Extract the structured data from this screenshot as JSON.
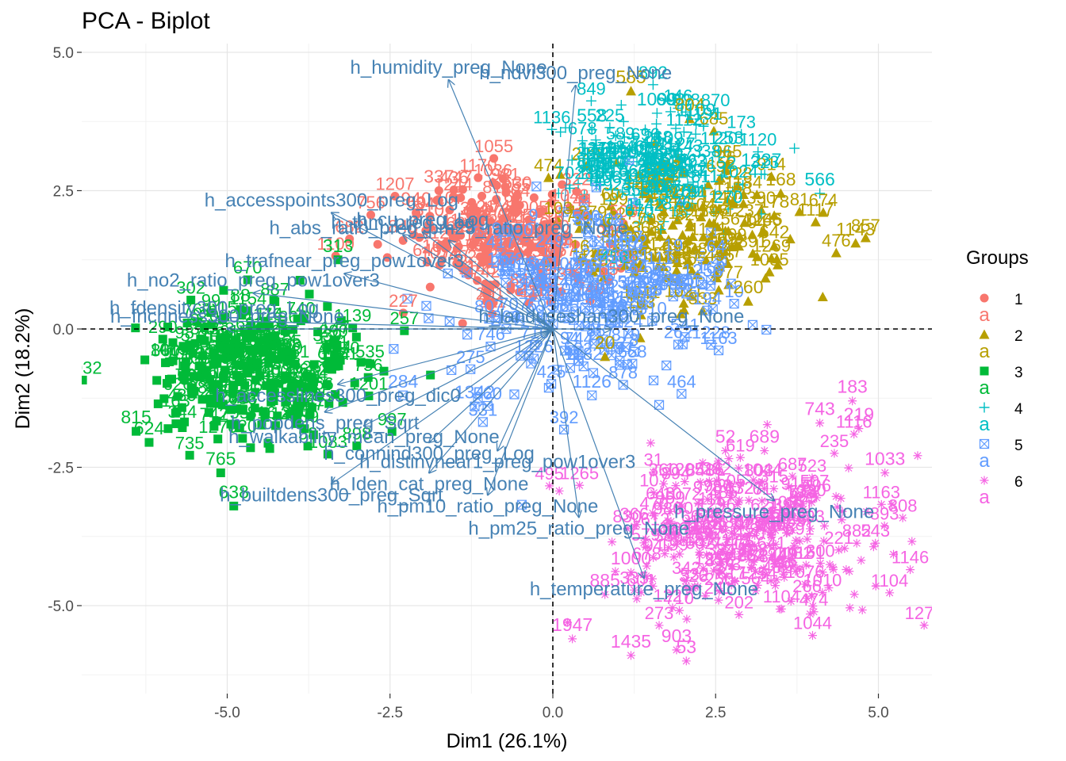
{
  "chart_data": {
    "type": "scatter",
    "title": "PCA - Biplot",
    "xlabel": "Dim1 (26.1%)",
    "ylabel": "Dim2 (18.2%)",
    "xlim": [
      -7.0,
      5.8
    ],
    "ylim": [
      -6.2,
      5.0
    ],
    "x_ticks": [
      -5.0,
      -2.5,
      0.0,
      2.5,
      5.0
    ],
    "x_tick_labels": [
      "-5.0",
      "-2.5",
      "0.0",
      "2.5",
      "5.0"
    ],
    "y_ticks": [
      -5.0,
      -2.5,
      0.0,
      2.5,
      5.0
    ],
    "y_tick_labels": [
      "-5.0",
      "-2.5",
      "0.0",
      "2.5",
      "5.0"
    ],
    "grid": true,
    "reference_lines": [
      {
        "axis": "x",
        "value": 0,
        "style": "dashed"
      },
      {
        "axis": "y",
        "value": 0,
        "style": "dashed"
      }
    ],
    "legend": {
      "title": "Groups",
      "placement": "right",
      "entries": [
        {
          "name": "1",
          "color": "#F8766D",
          "shape": "circle",
          "label_symbol": "a"
        },
        {
          "name": "2",
          "color": "#B79F00",
          "shape": "triangle",
          "label_symbol": "a"
        },
        {
          "name": "3",
          "color": "#00BA38",
          "shape": "square",
          "label_symbol": "a"
        },
        {
          "name": "4",
          "color": "#00BFC4",
          "shape": "plus",
          "label_symbol": "a"
        },
        {
          "name": "5",
          "color": "#619CFF",
          "shape": "boxcross",
          "label_symbol": "a"
        },
        {
          "name": "6",
          "color": "#F564E3",
          "shape": "asterisk",
          "label_symbol": "a"
        }
      ]
    },
    "groups": [
      {
        "name": "1",
        "center": [
          -0.8,
          1.6
        ],
        "spread": [
          0.75,
          0.6
        ],
        "count": 180
      },
      {
        "name": "2",
        "center": [
          2.0,
          1.7
        ],
        "spread": [
          0.9,
          0.75
        ],
        "count": 150
      },
      {
        "name": "3",
        "center": [
          -4.6,
          -0.8
        ],
        "spread": [
          0.85,
          0.65
        ],
        "count": 260
      },
      {
        "name": "4",
        "center": [
          1.5,
          2.8
        ],
        "spread": [
          0.75,
          0.55
        ],
        "count": 160
      },
      {
        "name": "5",
        "center": [
          0.6,
          0.6
        ],
        "spread": [
          1.05,
          0.85
        ],
        "count": 200
      },
      {
        "name": "6",
        "center": [
          3.0,
          -3.8
        ],
        "spread": [
          1.05,
          0.75
        ],
        "count": 260
      }
    ],
    "points": [
      {
        "group": "1",
        "x": -1.75,
        "y": 2.5,
        "label": "337"
      },
      {
        "group": "1",
        "x": -2.1,
        "y": 2.1,
        "label": "940"
      },
      {
        "group": "1",
        "x": -2.3,
        "y": 1.6,
        "label": "848"
      },
      {
        "group": "1",
        "x": -1.9,
        "y": 1.9,
        "label": "310"
      },
      {
        "group": "1",
        "x": -1.7,
        "y": 1.25,
        "label": "1052"
      },
      {
        "group": "2",
        "x": 4.65,
        "y": 1.55,
        "label": "1143"
      },
      {
        "group": "2",
        "x": 3.5,
        "y": 2.45,
        "label": "168"
      },
      {
        "group": "2",
        "x": 3.4,
        "y": 2.05,
        "label": "178"
      },
      {
        "group": "2",
        "x": 3.4,
        "y": 1.5,
        "label": "642"
      },
      {
        "group": "2",
        "x": 3.0,
        "y": 0.5,
        "label": "260"
      },
      {
        "group": "2",
        "x": 1.2,
        "y": 4.3,
        "label": "585"
      },
      {
        "group": "2",
        "x": 2.1,
        "y": 3.8,
        "label": "804"
      },
      {
        "group": "2",
        "x": 0.8,
        "y": -0.5,
        "label": "20"
      },
      {
        "group": "3",
        "x": -6.4,
        "y": -1.85,
        "label": "815"
      },
      {
        "group": "3",
        "x": -6.2,
        "y": -2.05,
        "label": "624"
      },
      {
        "group": "3",
        "x": -4.9,
        "y": -3.2,
        "label": "638"
      },
      {
        "group": "3",
        "x": -5.1,
        "y": -2.6,
        "label": "765"
      },
      {
        "group": "3",
        "x": -4.8,
        "y": 0.35,
        "label": "88"
      },
      {
        "group": "3",
        "x": -3.3,
        "y": 1.25,
        "label": "313"
      },
      {
        "group": "4",
        "x": 4.1,
        "y": 2.45,
        "label": "566"
      },
      {
        "group": "4",
        "x": 3.2,
        "y": 2.8,
        "label": "1237"
      },
      {
        "group": "4",
        "x": 2.2,
        "y": 3.7,
        "label": "1109"
      },
      {
        "group": "4",
        "x": 0.6,
        "y": 3.6,
        "label": "558"
      },
      {
        "group": "4",
        "x": 2.7,
        "y": 3.2,
        "label": "253"
      },
      {
        "group": "4",
        "x": 1.6,
        "y": 3.9,
        "label": "1099"
      },
      {
        "group": "4",
        "x": 0.7,
        "y": 3.0,
        "label": "1118"
      },
      {
        "group": "5",
        "x": 0.6,
        "y": -1.2,
        "label": "1126"
      },
      {
        "group": "5",
        "x": -1.2,
        "y": -1.4,
        "label": "1342"
      },
      {
        "group": "5",
        "x": -2.3,
        "y": -1.2,
        "label": "284"
      },
      {
        "group": "5",
        "x": 2.3,
        "y": 0.8,
        "label": "1258"
      },
      {
        "group": "5",
        "x": 0.1,
        "y": 0.6,
        "label": "1240"
      },
      {
        "group": "6",
        "x": 4.6,
        "y": -1.3,
        "label": "183"
      },
      {
        "group": "6",
        "x": 4.1,
        "y": -1.7,
        "label": "743"
      },
      {
        "group": "6",
        "x": 4.7,
        "y": -1.8,
        "label": "219"
      },
      {
        "group": "6",
        "x": 2.65,
        "y": -2.2,
        "label": "52"
      },
      {
        "group": "6",
        "x": 3.25,
        "y": -2.2,
        "label": "689"
      },
      {
        "group": "6",
        "x": 1.7,
        "y": -2.8,
        "label": "360"
      },
      {
        "group": "6",
        "x": 5.1,
        "y": -2.6,
        "label": "1033"
      },
      {
        "group": "6",
        "x": 1.8,
        "y": -3.3,
        "label": "959"
      },
      {
        "group": "6",
        "x": 1.2,
        "y": -4.4,
        "label": "1000"
      },
      {
        "group": "6",
        "x": 0.8,
        "y": -4.8,
        "label": "885"
      },
      {
        "group": "6",
        "x": 0.3,
        "y": -5.6,
        "label": "1947"
      },
      {
        "group": "6",
        "x": 1.2,
        "y": -5.9,
        "label": "1435"
      },
      {
        "group": "6",
        "x": 1.9,
        "y": -5.8,
        "label": "903"
      },
      {
        "group": "6",
        "x": 2.05,
        "y": -6.0,
        "label": "53"
      }
    ],
    "variables": [
      {
        "name": "h_humidity_preg_None",
        "x": -1.6,
        "y": 4.5
      },
      {
        "name": "h_ndvi300_preg_None",
        "x": 0.35,
        "y": 4.4
      },
      {
        "name": "h_accesspoints300_preg_Log",
        "x": -3.4,
        "y": 2.1
      },
      {
        "name": "h_thm_preg_Log",
        "x": -2.3,
        "y": 1.7
      },
      {
        "name": "h_cu_preg_Log",
        "x": -2.0,
        "y": 1.75
      },
      {
        "name": "h_abs_ratio_preg_pm25_ratio_preg_None",
        "x": -1.6,
        "y": 1.6
      },
      {
        "name": "h_no2_ratio_preg_pow1over3",
        "x": -4.6,
        "y": 0.65
      },
      {
        "name": "h_trafnear_preg_pow1over3",
        "x": -3.2,
        "y": 1.0
      },
      {
        "name": "h_fdensity300_preg_Log",
        "x": -5.2,
        "y": 0.15
      },
      {
        "name": "h_frichness300_preg_None",
        "x": -5.0,
        "y": 0.0
      },
      {
        "name": "h_landuseshan300_preg_None",
        "x": 0.9,
        "y": 0.0
      },
      {
        "name": "h_accesslines300_preg_dic0",
        "x": -3.3,
        "y": -1.0
      },
      {
        "name": "h_popdens_preg_Sqrt",
        "x": -3.5,
        "y": -1.5
      },
      {
        "name": "h_walkability_mean_preg_None",
        "x": -2.9,
        "y": -1.75
      },
      {
        "name": "h_distinvnear1_preg_pow1over3",
        "x": -0.85,
        "y": -2.2
      },
      {
        "name": "h_connind300_preg_Log",
        "x": -1.9,
        "y": -2.05
      },
      {
        "name": "h_builtdens300_preg_Sqrt",
        "x": -3.4,
        "y": -2.8
      },
      {
        "name": "h_Iden_cat_preg_None",
        "x": -1.9,
        "y": -2.6
      },
      {
        "name": "h_pm10_ratio_preg_None",
        "x": -1.0,
        "y": -3.0
      },
      {
        "name": "h_pressure_preg_None",
        "x": 3.4,
        "y": -3.1
      },
      {
        "name": "h_temperature_preg_None",
        "x": 1.4,
        "y": -4.5
      },
      {
        "name": "h_pm25_ratio_preg_None",
        "x": 0.4,
        "y": -3.4
      }
    ]
  }
}
